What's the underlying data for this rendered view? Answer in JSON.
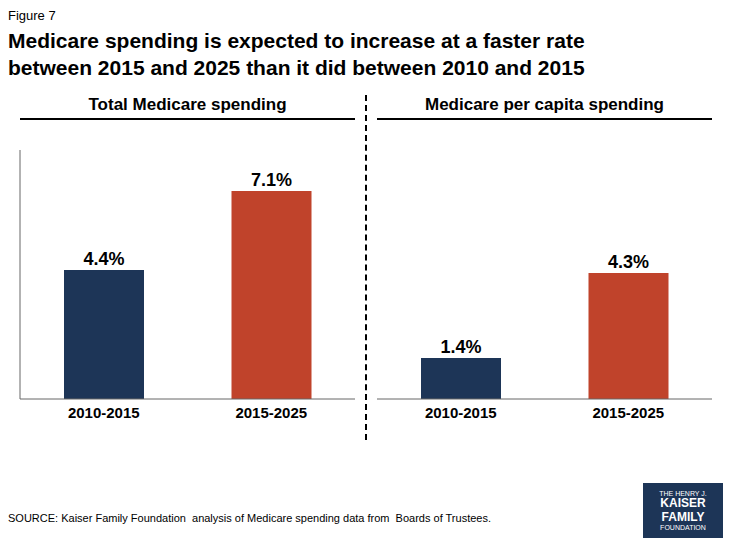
{
  "chart_data": {
    "type": "bar",
    "label": "Figure 7",
    "title": "Medicare spending is expected to increase at a faster rate\nbetween 2015 and 2025 than it did between 2010 and 2015",
    "groups": [
      "Total Medicare spending",
      "Medicare per capita spending"
    ],
    "categories": [
      "2010-2015",
      "2015-2025",
      "2010-2015",
      "2015-2025"
    ],
    "values": [
      4.4,
      7.1,
      1.4,
      4.3
    ],
    "value_labels": [
      "4.4%",
      "7.1%",
      "1.4%",
      "4.3%"
    ],
    "colors": [
      "#1d3557",
      "#c0432b",
      "#1d3557",
      "#c0432b"
    ],
    "ylim": [
      0,
      8.5
    ],
    "data_labels": true,
    "tick_labels": "x",
    "grid": false,
    "source": "SOURCE: Kaiser Family Foundation  analysis of Medicare spending data from  Boards of Trustees.",
    "logo": [
      "THE HENRY J.",
      "KAISER",
      "FAMILY",
      "FOUNDATION"
    ],
    "logo_color": "#1d3557"
  }
}
